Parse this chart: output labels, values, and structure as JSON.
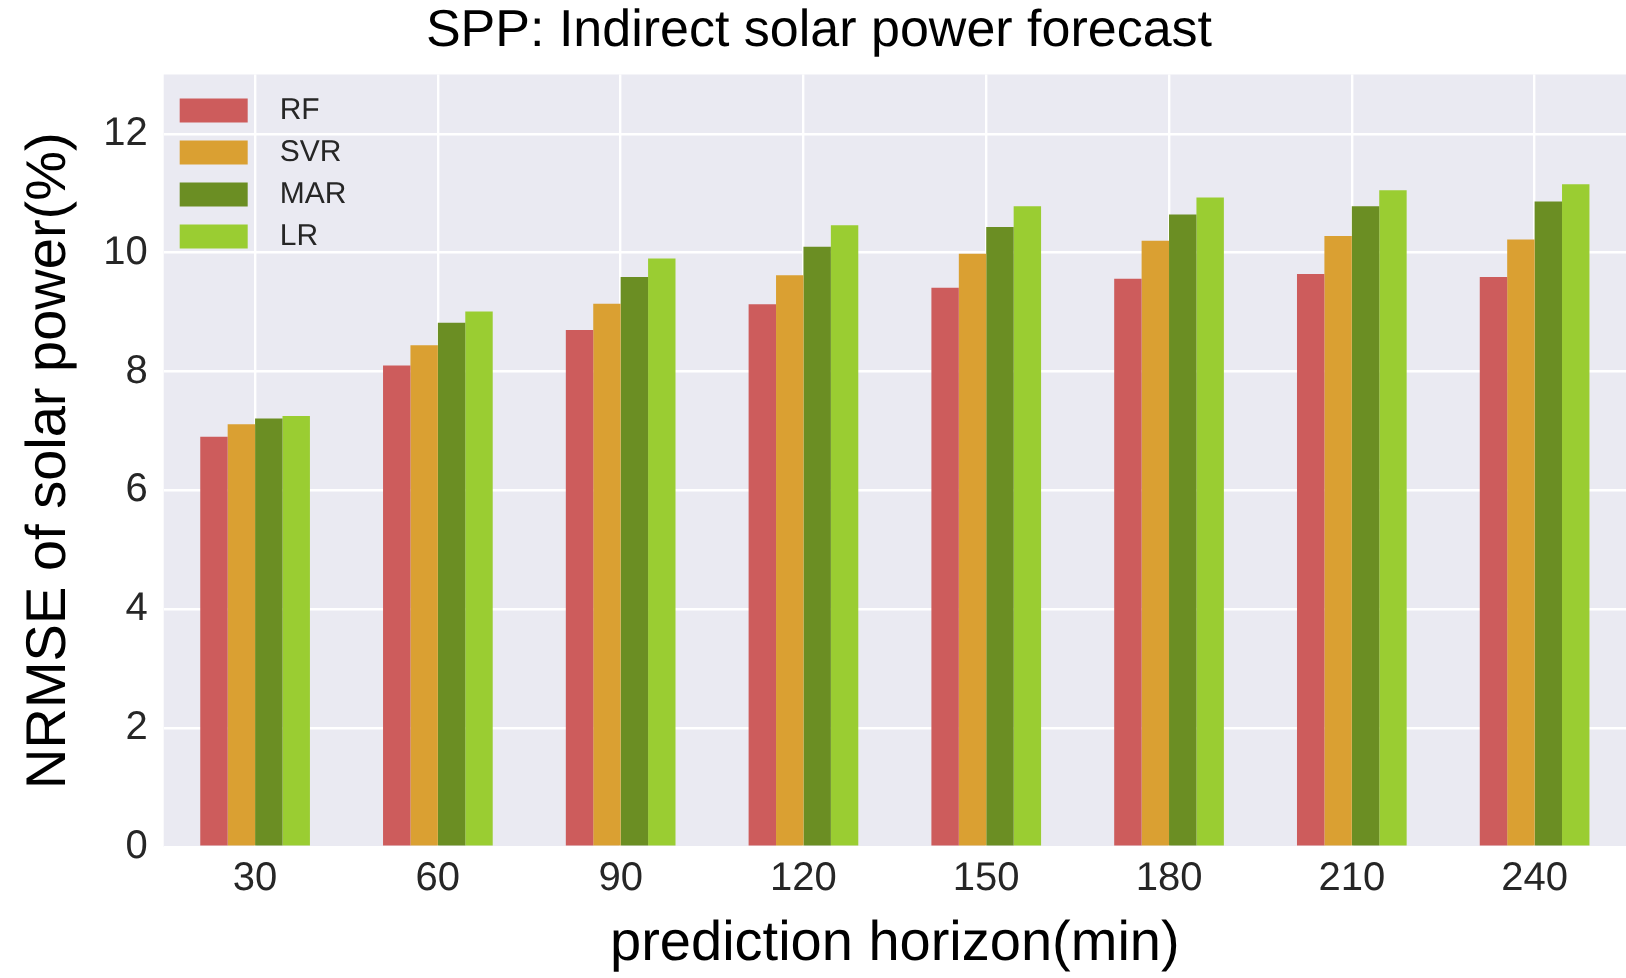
{
  "chart_data": {
    "type": "bar",
    "title": "SPP: Indirect solar power forecast",
    "xlabel": "prediction horizon(min)",
    "ylabel": "NRMSE of solar power(%)",
    "categories": [
      "30",
      "60",
      "90",
      "120",
      "150",
      "180",
      "210",
      "240"
    ],
    "series": [
      {
        "name": "RF",
        "color": "#cd5c5c",
        "values": [
          6.9,
          8.1,
          8.7,
          9.13,
          9.41,
          9.56,
          9.64,
          9.59
        ]
      },
      {
        "name": "SVR",
        "color": "#daa032",
        "values": [
          7.11,
          8.44,
          9.14,
          9.62,
          9.98,
          10.2,
          10.28,
          10.22
        ]
      },
      {
        "name": "MAR",
        "color": "#6b8e23",
        "values": [
          7.21,
          8.82,
          9.59,
          10.1,
          10.43,
          10.64,
          10.78,
          10.86
        ]
      },
      {
        "name": "LR",
        "color": "#9acd32",
        "values": [
          7.25,
          9.01,
          9.9,
          10.46,
          10.78,
          10.93,
          11.05,
          11.15
        ]
      }
    ],
    "ylim": [
      0,
      13
    ],
    "yticks": [
      0,
      2,
      4,
      6,
      8,
      10,
      12
    ],
    "grid": true,
    "legend": "top left"
  }
}
